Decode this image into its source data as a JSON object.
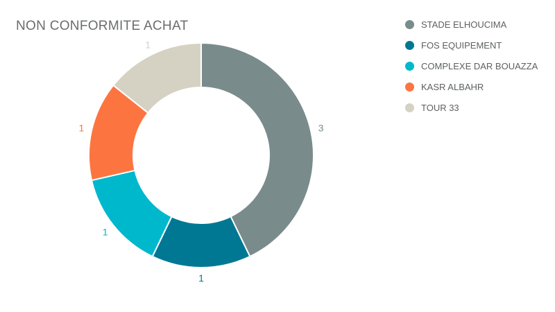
{
  "title": "NON CONFORMITE ACHAT",
  "colors": {
    "background": "#ffffff",
    "title_text": "#6a6c6d",
    "legend_text": "#5c5f61",
    "slice_separator": "#ffffff"
  },
  "chart_data": {
    "type": "pie",
    "subtype": "donut",
    "title": "NON CONFORMITE ACHAT",
    "categories": [
      "STADE ELHOUCIMA",
      "FOS EQUIPEMENT",
      "COMPLEXE DAR BOUAZZA",
      "KASR ALBAHR",
      "TOUR 33"
    ],
    "values": [
      3,
      1,
      1,
      1,
      1
    ],
    "value_labels": [
      "3",
      "1",
      "1",
      "1",
      "1"
    ],
    "colors": [
      "#7a8b8b",
      "#007894",
      "#00b8cc",
      "#fc7540",
      "#d5d2c4"
    ],
    "total": 7,
    "start_angle_deg": 0,
    "direction": "clockwise",
    "legend_position": "right",
    "labels_position": "outside"
  }
}
